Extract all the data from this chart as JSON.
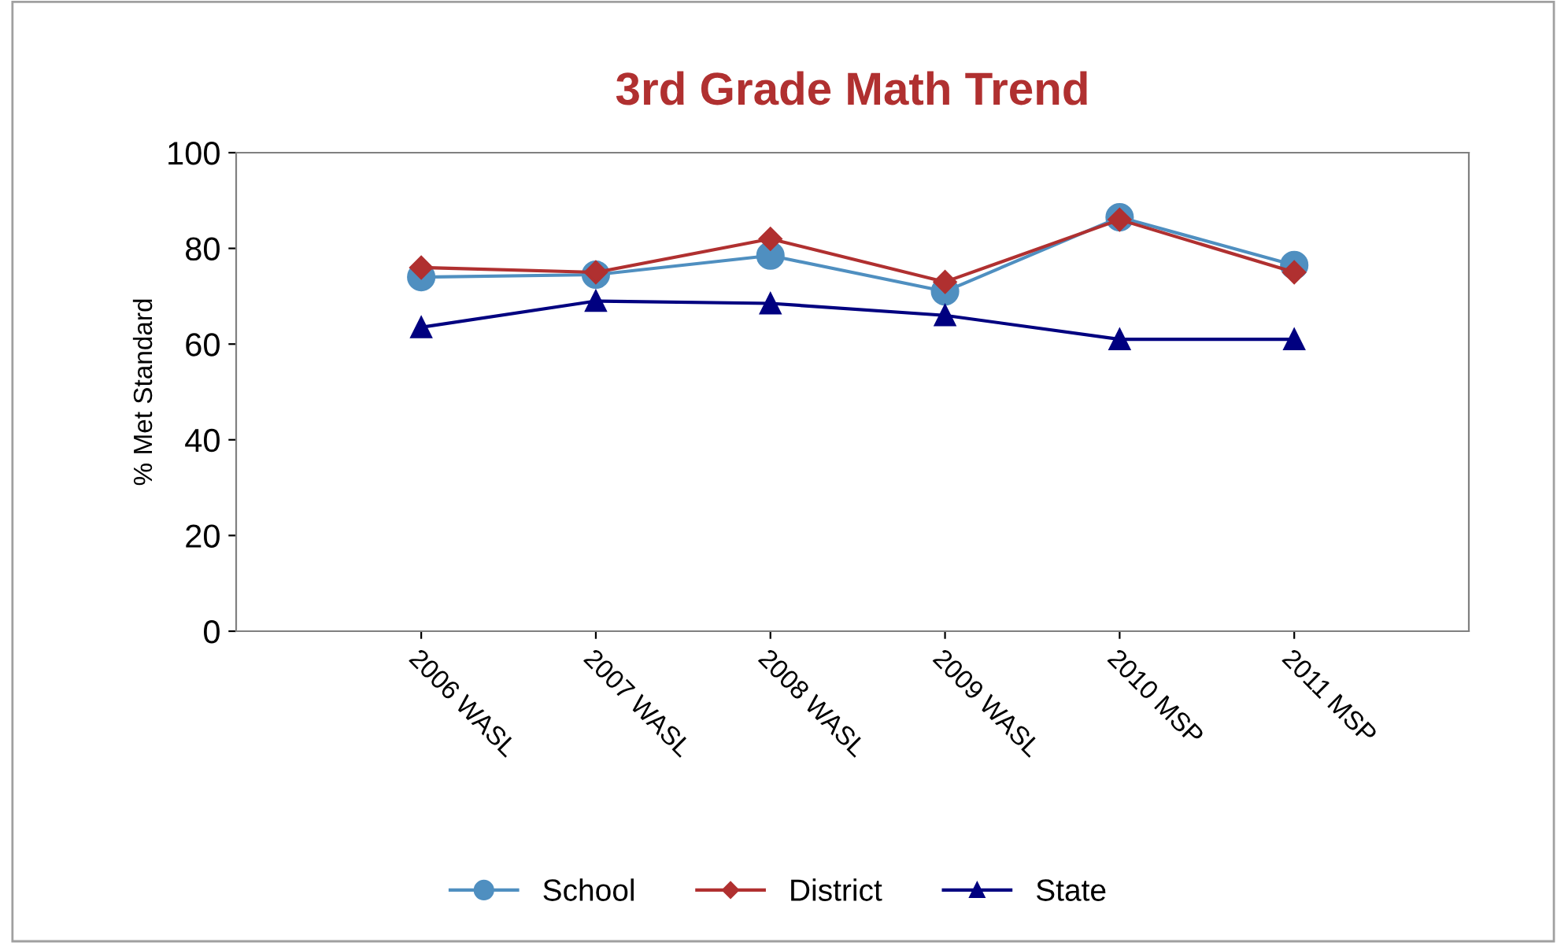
{
  "chart_data": {
    "type": "line",
    "title": "3rd Grade Math Trend",
    "ylabel": "% Met Standard",
    "categories": [
      "2006 WASL",
      "2007 WASL",
      "2008 WASL",
      "2009 WASL",
      "2010 MSP",
      "2011 MSP"
    ],
    "series": [
      {
        "name": "School",
        "color": "#4f8fc0",
        "marker": "circle",
        "values": [
          74,
          74.5,
          78.5,
          71,
          86.5,
          76.5
        ]
      },
      {
        "name": "District",
        "color": "#b03030",
        "marker": "diamond",
        "values": [
          76,
          75,
          82,
          73,
          86,
          75
        ]
      },
      {
        "name": "State",
        "color": "#000080",
        "marker": "triangle",
        "values": [
          63.5,
          69,
          68.5,
          66,
          61,
          61
        ]
      }
    ],
    "ylim": [
      0,
      100
    ],
    "yticks": [
      0,
      20,
      40,
      60,
      80,
      100
    ],
    "grid": false,
    "legend": "bottom",
    "line_style": "solid"
  }
}
